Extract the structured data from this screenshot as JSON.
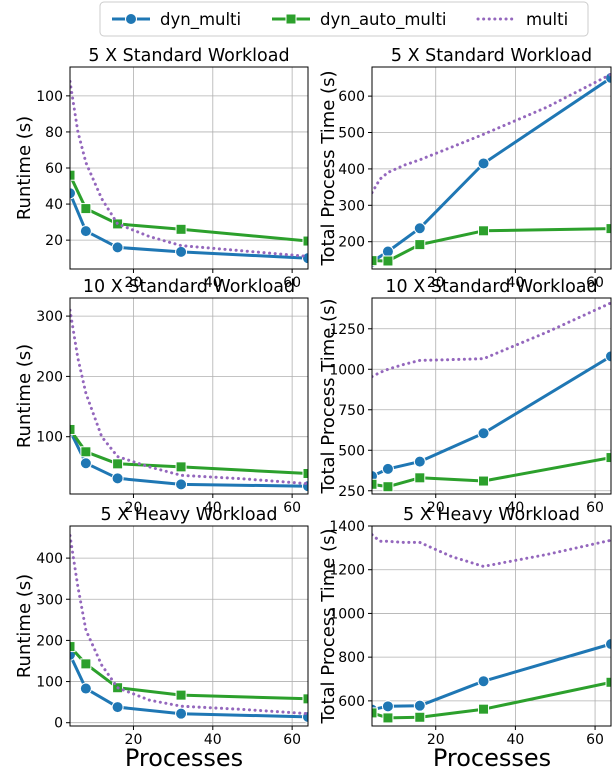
{
  "legend": {
    "location": "top-center",
    "entries": [
      {
        "label": "dyn_multi",
        "color": "#1f77b4",
        "marker": "circle",
        "dash": "solid"
      },
      {
        "label": "dyn_auto_multi",
        "color": "#2ca02c",
        "marker": "square",
        "dash": "solid"
      },
      {
        "label": "multi",
        "color": "#9467bd",
        "marker": "none",
        "dash": "dotted"
      }
    ]
  },
  "shared_xlabel": "Processes",
  "chart_data": [
    {
      "type": "line",
      "title": "5 X Standard Workload",
      "ylabel": "Runtime (s)",
      "xlim": [
        4,
        64
      ],
      "ylim": [
        4,
        116
      ],
      "xticks": [
        20,
        40,
        60
      ],
      "yticks": [
        20,
        40,
        60,
        80,
        100
      ],
      "grid": true,
      "series": [
        {
          "name": "dyn_multi",
          "x": [
            4,
            8,
            16,
            32,
            64
          ],
          "y": [
            46,
            25,
            16,
            13.5,
            10
          ]
        },
        {
          "name": "dyn_auto_multi",
          "x": [
            4,
            8,
            16,
            32,
            64
          ],
          "y": [
            56,
            37.5,
            29,
            26,
            19.5
          ]
        },
        {
          "name": "multi",
          "x": [
            4,
            6,
            8,
            12,
            16,
            24,
            32,
            48,
            64
          ],
          "y": [
            108,
            80,
            63,
            43,
            29,
            22,
            17,
            14,
            11
          ]
        }
      ]
    },
    {
      "type": "line",
      "title": "5 X Standard Workload",
      "ylabel": "Total Process Time (s)",
      "xlim": [
        4,
        64
      ],
      "ylim": [
        125,
        680
      ],
      "xticks": [
        20,
        40,
        60
      ],
      "yticks": [
        200,
        300,
        400,
        500,
        600
      ],
      "grid": true,
      "series": [
        {
          "name": "dyn_multi",
          "x": [
            4,
            8,
            16,
            32,
            64
          ],
          "y": [
            145,
            173,
            237,
            415,
            650
          ]
        },
        {
          "name": "dyn_auto_multi",
          "x": [
            4,
            8,
            16,
            32,
            64
          ],
          "y": [
            148,
            147,
            192,
            230,
            236
          ]
        },
        {
          "name": "multi",
          "x": [
            4,
            6,
            8,
            12,
            16,
            24,
            32,
            48,
            64
          ],
          "y": [
            335,
            372,
            390,
            410,
            425,
            460,
            495,
            570,
            660
          ]
        }
      ]
    },
    {
      "type": "line",
      "title": "10 X Standard Workload",
      "ylabel": "Runtime (s)",
      "xlim": [
        4,
        64
      ],
      "ylim": [
        5,
        330
      ],
      "xticks": [
        20,
        40,
        60
      ],
      "yticks": [
        100,
        200,
        300
      ],
      "grid": true,
      "series": [
        {
          "name": "dyn_multi",
          "x": [
            4,
            8,
            16,
            32,
            64
          ],
          "y": [
            110,
            56,
            31,
            21,
            18
          ]
        },
        {
          "name": "dyn_auto_multi",
          "x": [
            4,
            8,
            16,
            32,
            64
          ],
          "y": [
            112,
            75,
            55,
            50,
            39
          ]
        },
        {
          "name": "multi",
          "x": [
            4,
            6,
            8,
            12,
            16,
            24,
            32,
            48,
            64
          ],
          "y": [
            310,
            230,
            172,
            100,
            67,
            50,
            36,
            30,
            22
          ]
        }
      ]
    },
    {
      "type": "line",
      "title": "10 X Standard Workload",
      "ylabel": "Total Process Time (s)",
      "xlim": [
        4,
        64
      ],
      "ylim": [
        230,
        1440
      ],
      "xticks": [
        20,
        40,
        60
      ],
      "yticks": [
        250,
        500,
        750,
        1000,
        1250
      ],
      "grid": true,
      "series": [
        {
          "name": "dyn_multi",
          "x": [
            4,
            8,
            16,
            32,
            64
          ],
          "y": [
            340,
            385,
            430,
            605,
            1080
          ]
        },
        {
          "name": "dyn_auto_multi",
          "x": [
            4,
            8,
            16,
            32,
            64
          ],
          "y": [
            290,
            275,
            330,
            310,
            455
          ]
        },
        {
          "name": "multi",
          "x": [
            4,
            6,
            8,
            12,
            16,
            24,
            32,
            48,
            64
          ],
          "y": [
            955,
            980,
            1000,
            1030,
            1055,
            1060,
            1065,
            1230,
            1410
          ]
        }
      ]
    },
    {
      "type": "line",
      "title": "5 X Heavy Workload",
      "ylabel": "Runtime (s)",
      "xlim": [
        4,
        64
      ],
      "ylim": [
        -8,
        478
      ],
      "xticks": [
        20,
        40,
        60
      ],
      "yticks": [
        0,
        100,
        200,
        300,
        400
      ],
      "grid": true,
      "series": [
        {
          "name": "dyn_multi",
          "x": [
            4,
            8,
            16,
            32,
            64
          ],
          "y": [
            165,
            83,
            38,
            22,
            14
          ]
        },
        {
          "name": "dyn_auto_multi",
          "x": [
            4,
            8,
            16,
            32,
            64
          ],
          "y": [
            185,
            143,
            85,
            67,
            58
          ]
        },
        {
          "name": "multi",
          "x": [
            4,
            6,
            8,
            12,
            16,
            24,
            32,
            48,
            64
          ],
          "y": [
            455,
            330,
            225,
            140,
            85,
            55,
            40,
            32,
            22
          ]
        }
      ]
    },
    {
      "type": "line",
      "title": "5 X Heavy Workload",
      "ylabel": "Total Process Time (s)",
      "xlim": [
        4,
        64
      ],
      "ylim": [
        485,
        1400
      ],
      "xticks": [
        20,
        40,
        60
      ],
      "yticks": [
        600,
        800,
        1000,
        1200,
        1400
      ],
      "grid": true,
      "series": [
        {
          "name": "dyn_multi",
          "x": [
            4,
            8,
            16,
            32,
            64
          ],
          "y": [
            560,
            575,
            578,
            690,
            860
          ]
        },
        {
          "name": "dyn_auto_multi",
          "x": [
            4,
            8,
            16,
            32,
            64
          ],
          "y": [
            545,
            522,
            525,
            562,
            685
          ]
        },
        {
          "name": "multi",
          "x": [
            4,
            6,
            8,
            12,
            16,
            24,
            32,
            48,
            64
          ],
          "y": [
            1360,
            1330,
            1330,
            1325,
            1325,
            1260,
            1215,
            1270,
            1335
          ]
        }
      ]
    }
  ]
}
